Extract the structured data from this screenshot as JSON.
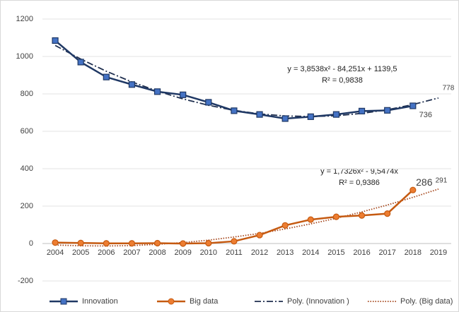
{
  "chart_data": {
    "type": "line",
    "categories": [
      "2004",
      "2005",
      "2006",
      "2007",
      "2008",
      "2009",
      "2010",
      "2011",
      "2012",
      "2013",
      "2014",
      "2015",
      "2016",
      "2017",
      "2018",
      "2019"
    ],
    "ylim": [
      -200,
      1200
    ],
    "yticks": [
      -200,
      0,
      200,
      400,
      600,
      800,
      1000,
      1200
    ],
    "grid": true,
    "legend": "bottom",
    "annotations": [
      "y = 3,8538x² - 84,251x + 1139,5",
      "R² = 0,9838",
      "y = 1,7326x² - 9,5474x",
      "R² = 0,9386"
    ],
    "series": [
      {
        "name": "Innovation",
        "color": "#1f3864",
        "marker": "square",
        "marker_color": "#4472c4",
        "style": "solid",
        "values": [
          1085,
          970,
          890,
          850,
          812,
          795,
          755,
          710,
          690,
          668,
          678,
          690,
          708,
          712,
          736,
          null
        ],
        "label_points": [
          14
        ]
      },
      {
        "name": "Big data",
        "color": "#c55a11",
        "marker": "circle",
        "marker_color": "#ed7d31",
        "style": "solid",
        "values": [
          5,
          3,
          1,
          1,
          2,
          0,
          2,
          12,
          45,
          97,
          128,
          143,
          150,
          160,
          286,
          null
        ],
        "label_points": [
          14
        ]
      },
      {
        "name": "Poly. (Innovation )",
        "color": "#1f2f4f",
        "style": "dashdot",
        "values": [
          1059,
          986,
          921,
          864,
          815,
          773,
          739,
          712,
          693,
          682,
          679,
          683,
          696,
          715,
          743,
          778
        ],
        "label_points": [
          15
        ]
      },
      {
        "name": "Poly. (Big data)",
        "color": "#a5461b",
        "style": "dotted",
        "values": [
          -8,
          -12,
          -13,
          -11,
          -4,
          5,
          18,
          35,
          54,
          78,
          105,
          135,
          169,
          206,
          247,
          291
        ],
        "label_points": [
          15
        ]
      }
    ]
  }
}
